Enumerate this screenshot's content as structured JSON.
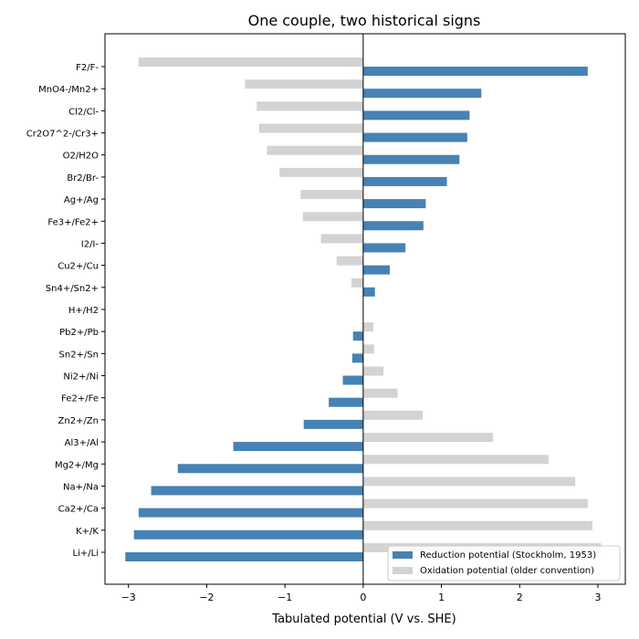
{
  "chart_data": {
    "type": "bar",
    "orientation": "horizontal",
    "title": "One couple, two historical signs",
    "xlabel": "Tabulated potential (V vs. SHE)",
    "ylabel": "",
    "xlim": [
      -3.3,
      3.35
    ],
    "xticks": [
      -3,
      -2,
      -1,
      0,
      1,
      2,
      3
    ],
    "xtick_labels": [
      "−3",
      "−2",
      "−1",
      "0",
      "1",
      "2",
      "3"
    ],
    "grid": false,
    "legend_position": "lower-right",
    "categories": [
      "F2/F-",
      "MnO4-/Mn2+",
      "Cl2/Cl-",
      "Cr2O7^2-/Cr3+",
      "O2/H2O",
      "Br2/Br-",
      "Ag+/Ag",
      "Fe3+/Fe2+",
      "I2/I-",
      "Cu2+/Cu",
      "Sn4+/Sn2+",
      "H+/H2",
      "Pb2+/Pb",
      "Sn2+/Sn",
      "Ni2+/Ni",
      "Fe2+/Fe",
      "Zn2+/Zn",
      "Al3+/Al",
      "Mg2+/Mg",
      "Na+/Na",
      "Ca2+/Ca",
      "K+/K",
      "Li+/Li"
    ],
    "series": [
      {
        "name": "Reduction potential (Stockholm, 1953)",
        "color": "#4682b4",
        "values": [
          2.87,
          1.51,
          1.36,
          1.33,
          1.23,
          1.07,
          0.8,
          0.77,
          0.54,
          0.34,
          0.15,
          0.0,
          -0.13,
          -0.14,
          -0.26,
          -0.44,
          -0.76,
          -1.66,
          -2.37,
          -2.71,
          -2.87,
          -2.93,
          -3.04
        ]
      },
      {
        "name": "Oxidation potential (older convention)",
        "color": "#d3d3d3",
        "values": [
          -2.87,
          -1.51,
          -1.36,
          -1.33,
          -1.23,
          -1.07,
          -0.8,
          -0.77,
          -0.54,
          -0.34,
          -0.15,
          0.0,
          0.13,
          0.14,
          0.26,
          0.44,
          0.76,
          1.66,
          2.37,
          2.71,
          2.87,
          2.93,
          3.04
        ]
      }
    ]
  }
}
